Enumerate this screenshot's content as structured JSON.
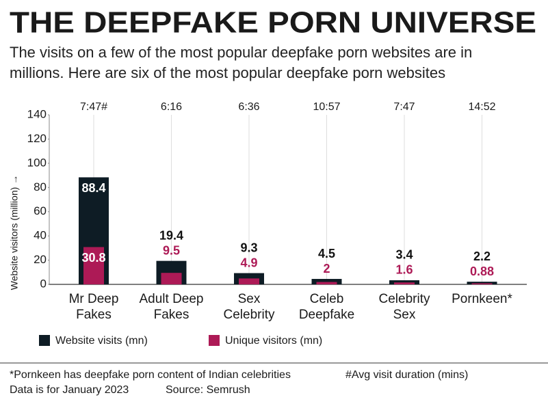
{
  "chart_data": {
    "type": "bar",
    "title": "THE DEEPFAKE PORN UNIVERSE",
    "subtitle": [
      "The visits on a few of the most popular deepfake porn websites are in",
      "millions. Here are six of the most popular deepfake porn websites"
    ],
    "y_label": "Website visitors (million) →",
    "categories": [
      [
        "Mr Deep",
        "Fakes"
      ],
      [
        "Adult Deep",
        "Fakes"
      ],
      [
        "Sex",
        "Celebrity"
      ],
      [
        "Celeb",
        "Deepfake"
      ],
      [
        "Celebrity",
        "Sex"
      ],
      [
        "Pornkeen*"
      ]
    ],
    "durations": [
      "7:47#",
      "6:16",
      "6:36",
      "10:57",
      "7:47",
      "14:52"
    ],
    "series": [
      {
        "name": "Website visits (mn)",
        "color": "#0e1c25",
        "values": [
          88.4,
          19.4,
          9.3,
          4.5,
          3.4,
          2.2
        ]
      },
      {
        "name": "Unique visitors (mn)",
        "color": "#ad1a56",
        "values": [
          30.8,
          9.5,
          4.9,
          2,
          1.6,
          0.88
        ]
      }
    ],
    "ylim": [
      0,
      140
    ],
    "yticks": [
      0,
      20,
      40,
      60,
      80,
      100,
      120,
      140
    ],
    "notes": [
      [
        "*Pornkeen has deepfake porn content of Indian celebrities",
        "#Avg visit duration (mins)"
      ],
      [
        "Data is for January 2023",
        "Source: Semrush"
      ]
    ]
  }
}
